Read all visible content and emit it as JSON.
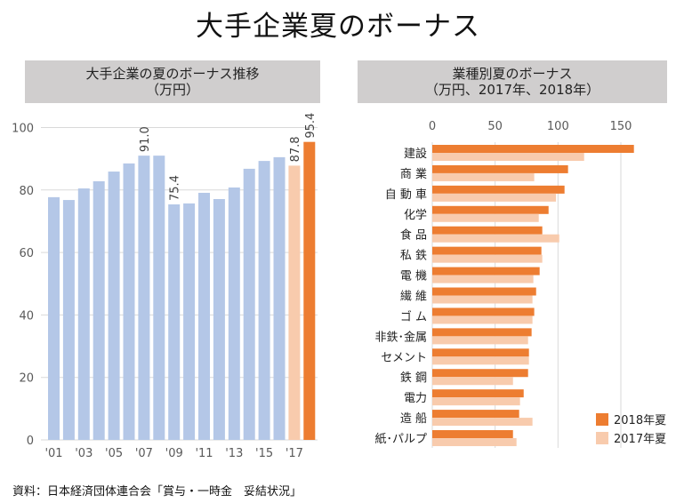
{
  "title": "大手企業夏のボーナス",
  "source": "資料：日本経済団体連合会「賞与・一時金　妥結状況」",
  "colors": {
    "past": "#b4c7e7",
    "y2017": "#f8cbad",
    "y2018": "#ed7d31",
    "grid": "#d9d9d9",
    "header_bg": "#d0cece"
  },
  "chart_data": [
    {
      "type": "bar",
      "title_lines": [
        "大手企業の夏のボーナス推移",
        "（万円）"
      ],
      "xlabel": "",
      "ylabel": "",
      "ylim": [
        0,
        100
      ],
      "yticks": [
        0,
        20,
        40,
        60,
        80,
        100
      ],
      "grid": true,
      "categories": [
        "2001",
        "2002",
        "2003",
        "2004",
        "2005",
        "2006",
        "2007",
        "2008",
        "2009",
        "2010",
        "2011",
        "2012",
        "2013",
        "2014",
        "2015",
        "2016",
        "2017",
        "2018"
      ],
      "tick_labels": [
        "'01",
        "",
        "'03",
        "",
        "'05",
        "",
        "'07",
        "",
        "'09",
        "",
        "'11",
        "",
        "'13",
        "",
        "'15",
        "",
        "'17",
        ""
      ],
      "values": [
        77.7,
        76.8,
        80.5,
        82.8,
        85.9,
        88.5,
        91.0,
        91.0,
        75.4,
        75.7,
        79.1,
        77.1,
        80.8,
        86.8,
        89.3,
        90.5,
        87.8,
        95.4
      ],
      "bar_color_keys": [
        "past",
        "past",
        "past",
        "past",
        "past",
        "past",
        "past",
        "past",
        "past",
        "past",
        "past",
        "past",
        "past",
        "past",
        "past",
        "past",
        "y2017",
        "y2018"
      ],
      "data_labels": [
        {
          "index": 6,
          "text": "91.0"
        },
        {
          "index": 8,
          "text": "75.4"
        },
        {
          "index": 16,
          "text": "87.8"
        },
        {
          "index": 17,
          "text": "95.4"
        }
      ]
    },
    {
      "type": "bar",
      "orientation": "horizontal",
      "title_lines": [
        "業種別夏のボーナス",
        "（万円、2017年、2018年）"
      ],
      "xlim": [
        0,
        165
      ],
      "xticks": [
        0,
        50,
        100,
        150
      ],
      "grid": true,
      "legend_position": "bottom-right",
      "categories": [
        "建設",
        "商 業",
        "自 動 車",
        "化学",
        "食 品",
        "私 鉄",
        "電 機",
        "繊 維",
        "ゴ ム",
        "非鉄･金属",
        "セメント",
        "鉄 鋼",
        "電力",
        "造 船",
        "紙･パルプ"
      ],
      "series": [
        {
          "name": "2018年夏",
          "color_key": "y2018",
          "values": [
            160.4,
            108.0,
            105.2,
            92.5,
            87.5,
            86.8,
            85.4,
            82.6,
            81.1,
            79.0,
            76.9,
            76.2,
            72.7,
            69.1,
            64.2
          ]
        },
        {
          "name": "2017年夏",
          "color_key": "y2017",
          "values": [
            120.8,
            81.1,
            98.4,
            84.7,
            101.0,
            87.5,
            80.4,
            79.7,
            79.7,
            76.2,
            76.9,
            64.2,
            69.8,
            79.7,
            67.0
          ]
        }
      ]
    }
  ]
}
